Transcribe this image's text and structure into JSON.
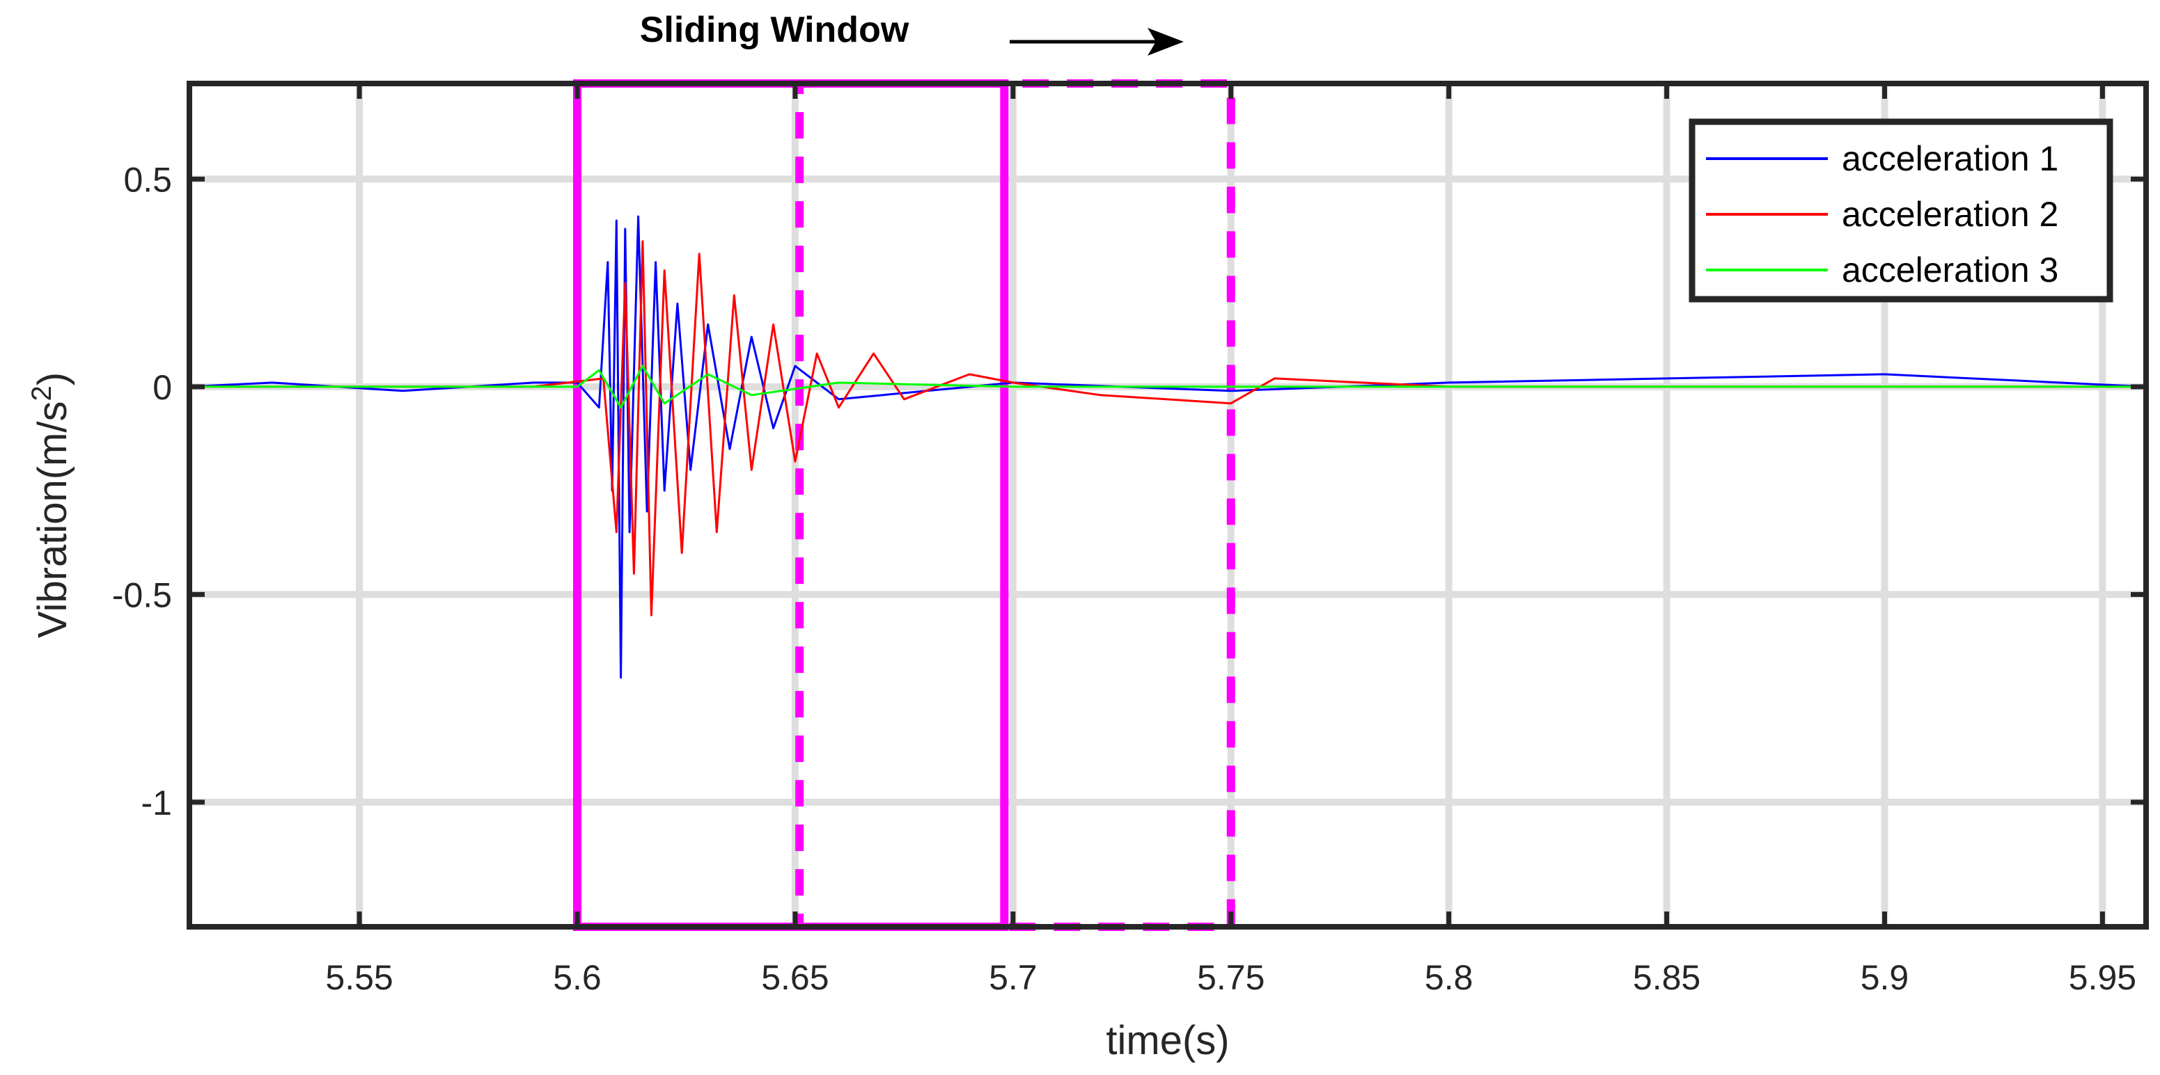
{
  "chart_data": {
    "type": "line",
    "xlabel": "time(s)",
    "ylabel": "Vibration(m/s",
    "ylabel_superscript": "2",
    "ylabel_suffix": ")",
    "xlim": [
      5.511,
      5.96
    ],
    "ylim": [
      -1.3,
      0.73
    ],
    "x_ticks": [
      5.55,
      5.6,
      5.65,
      5.7,
      5.75,
      5.8,
      5.85,
      5.9,
      5.95
    ],
    "x_tick_labels": [
      "5.55",
      "5.6",
      "5.65",
      "5.7",
      "5.75",
      "5.8",
      "5.85",
      "5.9",
      "5.95"
    ],
    "y_ticks": [
      0.5,
      0,
      -0.5,
      -1
    ],
    "y_tick_labels": [
      "0.5",
      "0",
      "-0.5",
      "-1"
    ],
    "grid": true,
    "legend_position": "top-right",
    "annotation": "Sliding Window",
    "window_current": [
      5.6,
      5.698
    ],
    "window_next": [
      5.651,
      5.75
    ],
    "series": [
      {
        "name": "acceleration 1",
        "color": "#0000ff",
        "points": [
          [
            5.511,
            0
          ],
          [
            5.53,
            0.01
          ],
          [
            5.56,
            -0.01
          ],
          [
            5.59,
            0.01
          ],
          [
            5.6,
            0.01
          ],
          [
            5.605,
            -0.05
          ],
          [
            5.607,
            0.3
          ],
          [
            5.608,
            -0.25
          ],
          [
            5.609,
            0.4
          ],
          [
            5.61,
            -0.7
          ],
          [
            5.611,
            0.38
          ],
          [
            5.612,
            -0.35
          ],
          [
            5.614,
            0.41
          ],
          [
            5.616,
            -0.3
          ],
          [
            5.618,
            0.3
          ],
          [
            5.62,
            -0.25
          ],
          [
            5.623,
            0.2
          ],
          [
            5.626,
            -0.2
          ],
          [
            5.63,
            0.15
          ],
          [
            5.635,
            -0.15
          ],
          [
            5.64,
            0.12
          ],
          [
            5.645,
            -0.1
          ],
          [
            5.65,
            0.05
          ],
          [
            5.66,
            -0.03
          ],
          [
            5.7,
            0.01
          ],
          [
            5.75,
            -0.01
          ],
          [
            5.8,
            0.01
          ],
          [
            5.85,
            0.02
          ],
          [
            5.9,
            0.03
          ],
          [
            5.96,
            0
          ]
        ]
      },
      {
        "name": "acceleration 2",
        "color": "#ff0000",
        "points": [
          [
            5.511,
            0
          ],
          [
            5.59,
            0
          ],
          [
            5.606,
            0.02
          ],
          [
            5.609,
            -0.35
          ],
          [
            5.611,
            0.25
          ],
          [
            5.613,
            -0.45
          ],
          [
            5.615,
            0.35
          ],
          [
            5.617,
            -0.55
          ],
          [
            5.62,
            0.28
          ],
          [
            5.624,
            -0.4
          ],
          [
            5.628,
            0.32
          ],
          [
            5.632,
            -0.35
          ],
          [
            5.636,
            0.22
          ],
          [
            5.64,
            -0.2
          ],
          [
            5.645,
            0.15
          ],
          [
            5.65,
            -0.18
          ],
          [
            5.655,
            0.08
          ],
          [
            5.66,
            -0.05
          ],
          [
            5.668,
            0.08
          ],
          [
            5.675,
            -0.03
          ],
          [
            5.69,
            0.03
          ],
          [
            5.7,
            0.01
          ],
          [
            5.72,
            -0.02
          ],
          [
            5.75,
            -0.04
          ],
          [
            5.76,
            0.02
          ],
          [
            5.8,
            0
          ],
          [
            5.96,
            0
          ]
        ]
      },
      {
        "name": "acceleration 3",
        "color": "#00ff00",
        "points": [
          [
            5.511,
            0
          ],
          [
            5.6,
            0
          ],
          [
            5.605,
            0.04
          ],
          [
            5.61,
            -0.05
          ],
          [
            5.615,
            0.05
          ],
          [
            5.62,
            -0.04
          ],
          [
            5.63,
            0.03
          ],
          [
            5.64,
            -0.02
          ],
          [
            5.66,
            0.01
          ],
          [
            5.7,
            0
          ],
          [
            5.96,
            0
          ]
        ]
      }
    ]
  }
}
